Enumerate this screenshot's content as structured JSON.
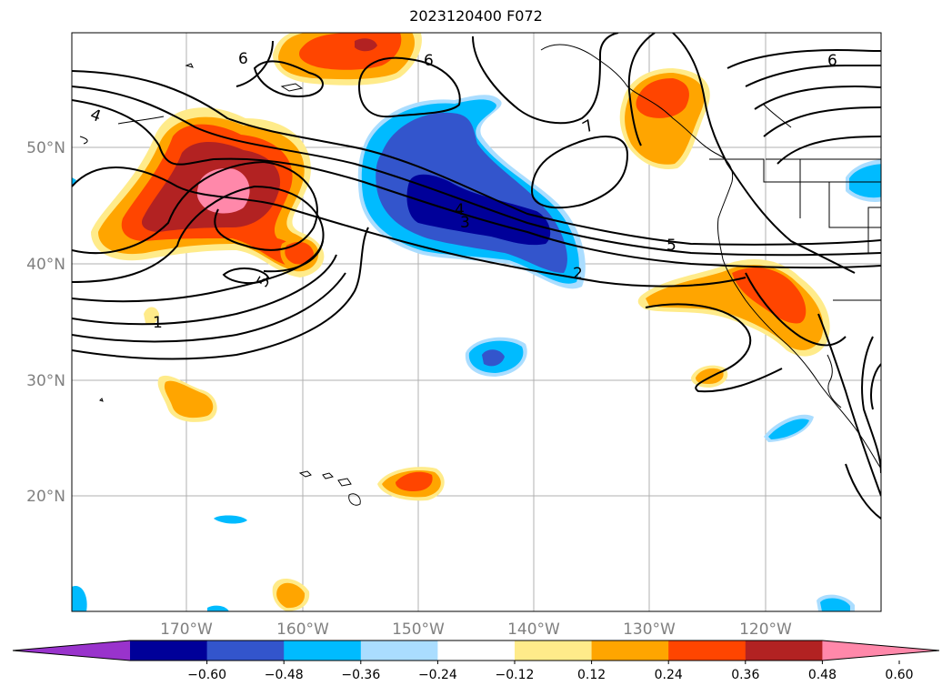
{
  "title": "2023120400 F072",
  "lat_labels": [
    "50°N",
    "40°N",
    "30°N",
    "20°N"
  ],
  "lon_labels": [
    "170°W",
    "160°W",
    "150°W",
    "140°W",
    "130°W",
    "120°W"
  ],
  "colorbar": {
    "ticks": [
      "−0.60",
      "−0.48",
      "−0.36",
      "−0.24",
      "−0.12",
      "0.12",
      "0.24",
      "0.36",
      "0.48",
      "0.60"
    ],
    "colors": [
      "#9933cc",
      "#000099",
      "#3355cc",
      "#00bbff",
      "#aaddff",
      "#ffffff",
      "#ffeb8a",
      "#ffa500",
      "#ff4500",
      "#b22222",
      "#ff88aa"
    ]
  },
  "contour_labels": [
    "6",
    "6",
    "6",
    "4",
    "7",
    "5",
    "4",
    "3",
    "2",
    "5",
    "1"
  ]
}
